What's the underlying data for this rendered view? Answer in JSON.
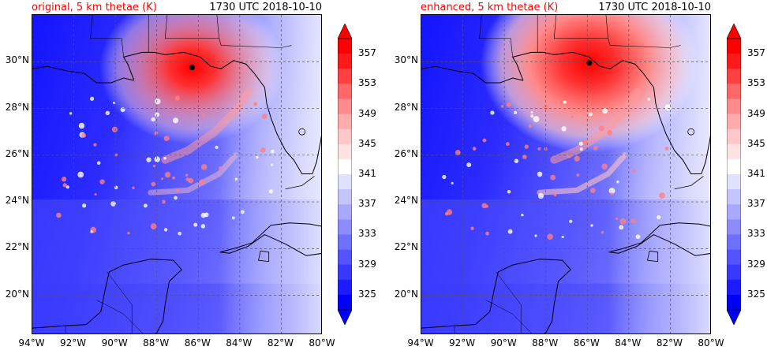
{
  "panels": [
    {
      "title_left": "original, 5 km thetae (K)",
      "title_right": "1730 UTC 2018-10-10",
      "marker_lon": -86.3,
      "marker_lat": 29.75,
      "warm_strength": 0.7
    },
    {
      "title_left": "enhanced, 5 km thetae (K)",
      "title_right": "1730 UTC 2018-10-10",
      "marker_lon": -85.9,
      "marker_lat": 29.95,
      "warm_strength": 1.0
    }
  ],
  "map_extent": {
    "lon_min": -94,
    "lon_max": -80,
    "lat_min": 18.3,
    "lat_max": 32.0
  },
  "lat_labels": [
    "30°N",
    "28°N",
    "26°N",
    "24°N",
    "22°N",
    "20°N"
  ],
  "lat_values": [
    30,
    28,
    26,
    24,
    22,
    20
  ],
  "lon_labels": [
    "94°W",
    "92°W",
    "90°W",
    "88°W",
    "86°W",
    "84°W",
    "82°W",
    "80°W"
  ],
  "lon_values": [
    -94,
    -92,
    -90,
    -88,
    -86,
    -84,
    -82,
    -80
  ],
  "colorbar": {
    "labels": [
      "357",
      "353",
      "349",
      "345",
      "341",
      "337",
      "333",
      "329",
      "325"
    ],
    "colors": [
      "#ff0000",
      "#ff1a1a",
      "#ff4040",
      "#ff6868",
      "#ff8c8c",
      "#ffabab",
      "#ffc8c8",
      "#ffe2e2",
      "#ffffff",
      "#e0e0ff",
      "#c4c4ff",
      "#a8a8ff",
      "#8c8cff",
      "#7070ff",
      "#5454ff",
      "#3838ff",
      "#1c1cff",
      "#0000ff"
    ]
  }
}
